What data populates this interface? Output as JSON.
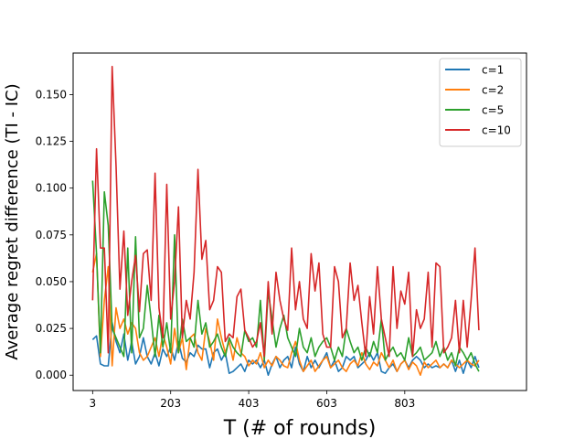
{
  "chart_data": {
    "type": "line",
    "title": "",
    "xlabel": "T (# of rounds)",
    "ylabel": "Average regret difference (TI - IC)",
    "xlim": [
      -47,
      1115
    ],
    "ylim": [
      -0.0082,
      0.1722
    ],
    "xticks": [
      3,
      203,
      403,
      603,
      803
    ],
    "xtick_labels": [
      "3",
      "203",
      "403",
      "603",
      "803"
    ],
    "yticks": [
      0.0,
      0.025,
      0.05,
      0.075,
      0.1,
      0.125,
      0.15
    ],
    "ytick_labels": [
      "0.000",
      "0.025",
      "0.050",
      "0.075",
      "0.100",
      "0.125",
      "0.150"
    ],
    "legend_position": "top-right",
    "grid": false,
    "x": [
      3,
      13,
      23,
      33,
      43,
      53,
      63,
      73,
      83,
      93,
      103,
      113,
      123,
      133,
      143,
      153,
      163,
      173,
      183,
      193,
      203,
      213,
      223,
      233,
      243,
      253,
      263,
      273,
      283,
      293,
      303,
      313,
      323,
      333,
      343,
      353,
      363,
      373,
      383,
      393,
      403,
      413,
      423,
      433,
      443,
      453,
      463,
      473,
      483,
      493,
      503,
      513,
      523,
      533,
      543,
      553,
      563,
      573,
      583,
      593,
      603,
      613,
      623,
      633,
      643,
      653,
      663,
      673,
      683,
      693,
      703,
      713,
      723,
      733,
      743,
      753,
      763,
      773,
      783,
      793,
      803,
      813,
      823,
      833,
      843,
      853,
      863,
      873,
      883,
      893,
      903,
      913,
      923,
      933,
      943,
      953,
      963,
      973,
      983,
      993
    ],
    "series": [
      {
        "name": "c=1",
        "color": "#1f77b4",
        "values": [
          0.019,
          0.021,
          0.006,
          0.005,
          0.005,
          0.028,
          0.018,
          0.012,
          0.022,
          0.008,
          0.018,
          0.006,
          0.01,
          0.02,
          0.01,
          0.006,
          0.012,
          0.005,
          0.014,
          0.01,
          0.015,
          0.008,
          0.018,
          0.009,
          0.007,
          0.012,
          0.01,
          0.016,
          0.014,
          0.014,
          0.004,
          0.012,
          0.014,
          0.008,
          0.012,
          0.001,
          0.002,
          0.004,
          0.006,
          0.002,
          0.008,
          0.006,
          0.008,
          0.004,
          0.008,
          0.0,
          0.006,
          0.01,
          0.004,
          0.008,
          0.01,
          0.004,
          0.015,
          0.006,
          0.002,
          0.01,
          0.004,
          0.008,
          0.004,
          0.008,
          0.012,
          0.004,
          0.008,
          0.002,
          0.004,
          0.01,
          0.008,
          0.01,
          0.004,
          0.006,
          0.008,
          0.012,
          0.008,
          0.012,
          0.002,
          0.001,
          0.004,
          0.006,
          0.002,
          0.006,
          0.008,
          0.004,
          0.008,
          0.01,
          0.008,
          0.004,
          0.006,
          0.004,
          0.005,
          0.004,
          0.006,
          0.004,
          0.008,
          0.002,
          0.008,
          0.001,
          0.008,
          0.004,
          0.01,
          0.004
        ]
      },
      {
        "name": "c=2",
        "color": "#ff7f0e",
        "values": [
          0.055,
          0.065,
          0.01,
          0.04,
          0.058,
          0.005,
          0.036,
          0.025,
          0.03,
          0.022,
          0.028,
          0.025,
          0.012,
          0.008,
          0.01,
          0.015,
          0.02,
          0.01,
          0.022,
          0.015,
          0.006,
          0.025,
          0.012,
          0.02,
          0.003,
          0.02,
          0.022,
          0.012,
          0.008,
          0.025,
          0.018,
          0.008,
          0.03,
          0.02,
          0.012,
          0.018,
          0.008,
          0.02,
          0.012,
          0.01,
          0.005,
          0.008,
          0.006,
          0.012,
          0.004,
          0.008,
          0.005,
          0.01,
          0.008,
          0.005,
          0.004,
          0.012,
          0.018,
          0.008,
          0.002,
          0.005,
          0.008,
          0.002,
          0.005,
          0.008,
          0.01,
          0.004,
          0.006,
          0.008,
          0.004,
          0.002,
          0.006,
          0.008,
          0.005,
          0.012,
          0.006,
          0.003,
          0.007,
          0.005,
          0.012,
          0.008,
          0.004,
          0.008,
          0.002,
          0.006,
          0.008,
          0.003,
          0.007,
          0.005,
          0.0,
          0.007,
          0.004,
          0.006,
          0.008,
          0.004,
          0.006,
          0.004,
          0.008,
          0.006,
          0.004,
          0.006,
          0.008,
          0.006,
          0.005,
          0.008
        ]
      },
      {
        "name": "c=5",
        "color": "#2ca02c",
        "values": [
          0.104,
          0.065,
          0.012,
          0.098,
          0.08,
          0.025,
          0.02,
          0.015,
          0.01,
          0.068,
          0.012,
          0.074,
          0.02,
          0.025,
          0.048,
          0.03,
          0.01,
          0.032,
          0.015,
          0.028,
          0.012,
          0.075,
          0.012,
          0.03,
          0.018,
          0.02,
          0.015,
          0.04,
          0.022,
          0.028,
          0.015,
          0.018,
          0.022,
          0.015,
          0.01,
          0.02,
          0.015,
          0.012,
          0.01,
          0.024,
          0.018,
          0.02,
          0.015,
          0.04,
          0.008,
          0.045,
          0.03,
          0.015,
          0.025,
          0.032,
          0.02,
          0.015,
          0.01,
          0.025,
          0.015,
          0.012,
          0.02,
          0.01,
          0.015,
          0.018,
          0.02,
          0.015,
          0.008,
          0.015,
          0.01,
          0.025,
          0.018,
          0.012,
          0.015,
          0.008,
          0.015,
          0.01,
          0.018,
          0.012,
          0.03,
          0.008,
          0.012,
          0.015,
          0.01,
          0.012,
          0.008,
          0.02,
          0.01,
          0.012,
          0.015,
          0.008,
          0.01,
          0.012,
          0.018,
          0.01,
          0.015,
          0.008,
          0.012,
          0.005,
          0.015,
          0.012,
          0.008,
          0.012,
          0.006,
          0.002
        ]
      },
      {
        "name": "c=10",
        "color": "#d62728",
        "values": [
          0.04,
          0.121,
          0.068,
          0.068,
          0.012,
          0.165,
          0.112,
          0.046,
          0.077,
          0.032,
          0.05,
          0.064,
          0.034,
          0.065,
          0.067,
          0.04,
          0.108,
          0.036,
          0.02,
          0.102,
          0.03,
          0.05,
          0.09,
          0.02,
          0.04,
          0.03,
          0.055,
          0.11,
          0.062,
          0.072,
          0.035,
          0.04,
          0.058,
          0.055,
          0.018,
          0.022,
          0.02,
          0.042,
          0.046,
          0.024,
          0.02,
          0.015,
          0.018,
          0.028,
          0.01,
          0.05,
          0.022,
          0.055,
          0.04,
          0.03,
          0.024,
          0.068,
          0.035,
          0.05,
          0.03,
          0.025,
          0.065,
          0.045,
          0.06,
          0.022,
          0.015,
          0.015,
          0.058,
          0.05,
          0.02,
          0.025,
          0.06,
          0.04,
          0.048,
          0.028,
          0.01,
          0.042,
          0.022,
          0.058,
          0.03,
          0.02,
          0.01,
          0.058,
          0.025,
          0.045,
          0.038,
          0.055,
          0.01,
          0.035,
          0.025,
          0.03,
          0.055,
          0.015,
          0.06,
          0.058,
          0.012,
          0.015,
          0.02,
          0.04,
          0.012,
          0.04,
          0.015,
          0.04,
          0.068,
          0.024
        ]
      }
    ]
  }
}
